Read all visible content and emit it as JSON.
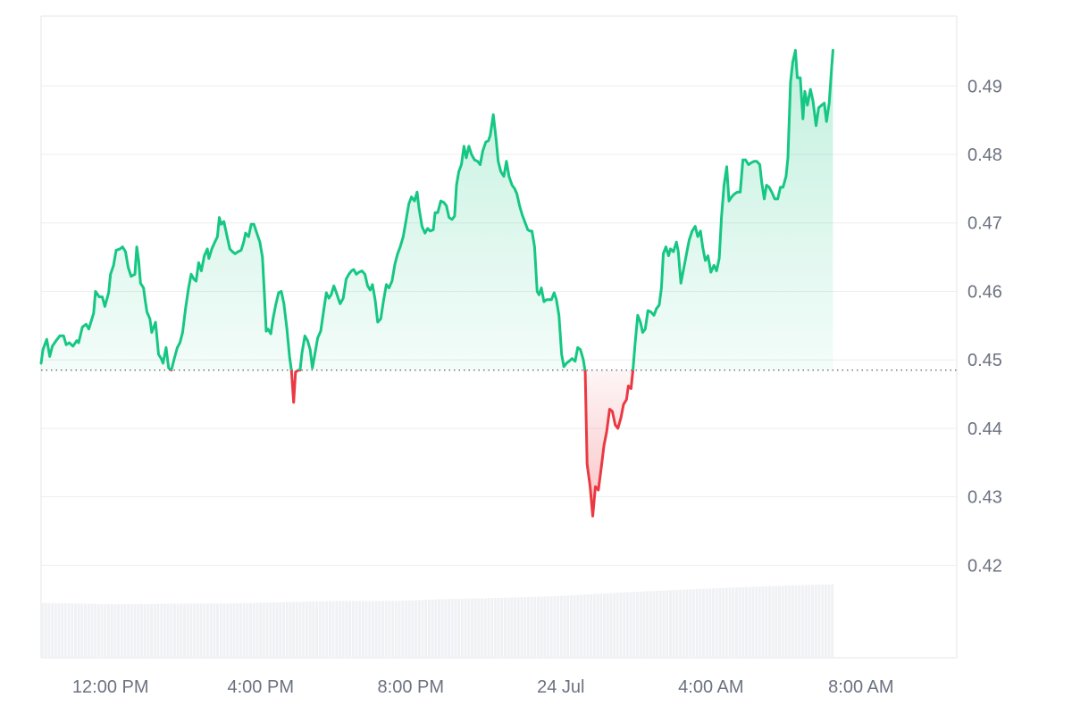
{
  "chart_data": {
    "type": "area",
    "x_unit": "hours from 10:00 AM, 23 Jul",
    "x_ticks": [
      {
        "x": 2,
        "label": "12:00 PM"
      },
      {
        "x": 6,
        "label": "4:00 PM"
      },
      {
        "x": 10,
        "label": "8:00 PM"
      },
      {
        "x": 14,
        "label": "24 Jul"
      },
      {
        "x": 18,
        "label": "4:00 AM"
      },
      {
        "x": 22,
        "label": "8:00 AM"
      }
    ],
    "y_ticks": [
      0.42,
      0.43,
      0.44,
      0.45,
      0.46,
      0.47,
      0.48,
      0.49
    ],
    "ylim": [
      0.4065,
      0.5002
    ],
    "xlim": [
      0.15,
      24.55
    ],
    "baseline": 0.4485,
    "colors": {
      "up_line": "#16c784",
      "down_line": "#ea3943",
      "up_fill": "#16c784",
      "down_fill": "#ea3943",
      "volume": "#eff1f4",
      "baseline": "#555b63"
    },
    "price": [
      [
        0.15,
        0.4495
      ],
      [
        0.2,
        0.4515
      ],
      [
        0.3,
        0.453
      ],
      [
        0.38,
        0.4505
      ],
      [
        0.45,
        0.452
      ],
      [
        0.55,
        0.4528
      ],
      [
        0.65,
        0.4535
      ],
      [
        0.75,
        0.4535
      ],
      [
        0.82,
        0.4522
      ],
      [
        0.9,
        0.4525
      ],
      [
        1.0,
        0.452
      ],
      [
        1.1,
        0.4528
      ],
      [
        1.15,
        0.4525
      ],
      [
        1.25,
        0.4548
      ],
      [
        1.35,
        0.4552
      ],
      [
        1.42,
        0.4545
      ],
      [
        1.55,
        0.4568
      ],
      [
        1.6,
        0.46
      ],
      [
        1.7,
        0.4592
      ],
      [
        1.78,
        0.4592
      ],
      [
        1.85,
        0.4578
      ],
      [
        1.95,
        0.4598
      ],
      [
        2.0,
        0.4625
      ],
      [
        2.08,
        0.4638
      ],
      [
        2.15,
        0.466
      ],
      [
        2.25,
        0.4662
      ],
      [
        2.32,
        0.4665
      ],
      [
        2.4,
        0.4658
      ],
      [
        2.47,
        0.4635
      ],
      [
        2.55,
        0.4622
      ],
      [
        2.65,
        0.4625
      ],
      [
        2.7,
        0.4665
      ],
      [
        2.75,
        0.4645
      ],
      [
        2.8,
        0.4612
      ],
      [
        2.88,
        0.4605
      ],
      [
        2.92,
        0.4588
      ],
      [
        2.97,
        0.457
      ],
      [
        3.05,
        0.456
      ],
      [
        3.1,
        0.454
      ],
      [
        3.2,
        0.4555
      ],
      [
        3.28,
        0.4508
      ],
      [
        3.35,
        0.4502
      ],
      [
        3.4,
        0.4495
      ],
      [
        3.48,
        0.4518
      ],
      [
        3.55,
        0.4488
      ],
      [
        3.62,
        0.4485
      ],
      [
        3.7,
        0.4502
      ],
      [
        3.78,
        0.4518
      ],
      [
        3.85,
        0.4525
      ],
      [
        3.92,
        0.454
      ],
      [
        4.0,
        0.4575
      ],
      [
        4.08,
        0.4605
      ],
      [
        4.15,
        0.4625
      ],
      [
        4.22,
        0.4618
      ],
      [
        4.28,
        0.4615
      ],
      [
        4.35,
        0.4642
      ],
      [
        4.42,
        0.463
      ],
      [
        4.5,
        0.4652
      ],
      [
        4.58,
        0.4662
      ],
      [
        4.62,
        0.4648
      ],
      [
        4.7,
        0.4662
      ],
      [
        4.78,
        0.4672
      ],
      [
        4.85,
        0.468
      ],
      [
        4.9,
        0.4708
      ],
      [
        4.95,
        0.4698
      ],
      [
        5.02,
        0.4702
      ],
      [
        5.1,
        0.4682
      ],
      [
        5.18,
        0.4662
      ],
      [
        5.25,
        0.4658
      ],
      [
        5.32,
        0.4655
      ],
      [
        5.4,
        0.4658
      ],
      [
        5.48,
        0.466
      ],
      [
        5.55,
        0.4672
      ],
      [
        5.6,
        0.4685
      ],
      [
        5.68,
        0.468
      ],
      [
        5.75,
        0.4698
      ],
      [
        5.82,
        0.4698
      ],
      [
        5.9,
        0.4685
      ],
      [
        5.98,
        0.4672
      ],
      [
        6.05,
        0.465
      ],
      [
        6.1,
        0.4598
      ],
      [
        6.15,
        0.4542
      ],
      [
        6.2,
        0.4545
      ],
      [
        6.27,
        0.4538
      ],
      [
        6.33,
        0.456
      ],
      [
        6.4,
        0.458
      ],
      [
        6.48,
        0.4598
      ],
      [
        6.55,
        0.46
      ],
      [
        6.62,
        0.4582
      ],
      [
        6.7,
        0.4545
      ],
      [
        6.77,
        0.4505
      ],
      [
        6.82,
        0.4485
      ],
      [
        6.88,
        0.4438
      ],
      [
        6.93,
        0.4482
      ],
      [
        7.0,
        0.4485
      ],
      [
        7.05,
        0.4485
      ],
      [
        7.1,
        0.451
      ],
      [
        7.18,
        0.4535
      ],
      [
        7.25,
        0.4528
      ],
      [
        7.32,
        0.4515
      ],
      [
        7.38,
        0.4488
      ],
      [
        7.45,
        0.451
      ],
      [
        7.52,
        0.4532
      ],
      [
        7.6,
        0.4542
      ],
      [
        7.68,
        0.4572
      ],
      [
        7.75,
        0.4598
      ],
      [
        7.82,
        0.459
      ],
      [
        7.88,
        0.4595
      ],
      [
        7.95,
        0.4608
      ],
      [
        8.02,
        0.4598
      ],
      [
        8.08,
        0.4588
      ],
      [
        8.12,
        0.4582
      ],
      [
        8.2,
        0.459
      ],
      [
        8.28,
        0.4618
      ],
      [
        8.35,
        0.4625
      ],
      [
        8.42,
        0.463
      ],
      [
        8.48,
        0.4632
      ],
      [
        8.55,
        0.4625
      ],
      [
        8.62,
        0.4628
      ],
      [
        8.7,
        0.463
      ],
      [
        8.78,
        0.4625
      ],
      [
        8.85,
        0.4608
      ],
      [
        8.92,
        0.4602
      ],
      [
        8.98,
        0.461
      ],
      [
        9.05,
        0.4588
      ],
      [
        9.12,
        0.4555
      ],
      [
        9.2,
        0.456
      ],
      [
        9.28,
        0.4588
      ],
      [
        9.35,
        0.461
      ],
      [
        9.42,
        0.4605
      ],
      [
        9.5,
        0.4615
      ],
      [
        9.58,
        0.464
      ],
      [
        9.65,
        0.4655
      ],
      [
        9.72,
        0.4665
      ],
      [
        9.8,
        0.468
      ],
      [
        9.88,
        0.4705
      ],
      [
        9.95,
        0.4728
      ],
      [
        10.02,
        0.4738
      ],
      [
        10.1,
        0.4732
      ],
      [
        10.17,
        0.4745
      ],
      [
        10.22,
        0.4722
      ],
      [
        10.3,
        0.4695
      ],
      [
        10.38,
        0.4685
      ],
      [
        10.45,
        0.4692
      ],
      [
        10.52,
        0.4688
      ],
      [
        10.6,
        0.469
      ],
      [
        10.65,
        0.4715
      ],
      [
        10.72,
        0.4715
      ],
      [
        10.8,
        0.4732
      ],
      [
        10.88,
        0.473
      ],
      [
        10.95,
        0.4725
      ],
      [
        11.02,
        0.4708
      ],
      [
        11.1,
        0.4705
      ],
      [
        11.17,
        0.471
      ],
      [
        11.22,
        0.4755
      ],
      [
        11.28,
        0.4775
      ],
      [
        11.35,
        0.4785
      ],
      [
        11.42,
        0.4812
      ],
      [
        11.48,
        0.4795
      ],
      [
        11.55,
        0.4812
      ],
      [
        11.62,
        0.48
      ],
      [
        11.7,
        0.4792
      ],
      [
        11.78,
        0.479
      ],
      [
        11.85,
        0.4785
      ],
      [
        11.92,
        0.4805
      ],
      [
        12.0,
        0.4818
      ],
      [
        12.07,
        0.482
      ],
      [
        12.12,
        0.4828
      ],
      [
        12.2,
        0.4858
      ],
      [
        12.27,
        0.4825
      ],
      [
        12.33,
        0.479
      ],
      [
        12.4,
        0.4775
      ],
      [
        12.48,
        0.4768
      ],
      [
        12.55,
        0.479
      ],
      [
        12.62,
        0.4768
      ],
      [
        12.7,
        0.4755
      ],
      [
        12.77,
        0.475
      ],
      [
        12.83,
        0.4742
      ],
      [
        12.9,
        0.4725
      ],
      [
        12.97,
        0.4712
      ],
      [
        13.05,
        0.47
      ],
      [
        13.12,
        0.469
      ],
      [
        13.18,
        0.4688
      ],
      [
        13.23,
        0.4688
      ],
      [
        13.3,
        0.4665
      ],
      [
        13.37,
        0.46
      ],
      [
        13.42,
        0.4595
      ],
      [
        13.48,
        0.4605
      ],
      [
        13.55,
        0.4585
      ],
      [
        13.62,
        0.4588
      ],
      [
        13.7,
        0.4588
      ],
      [
        13.75,
        0.4588
      ],
      [
        13.82,
        0.4598
      ],
      [
        13.88,
        0.4588
      ],
      [
        13.95,
        0.4565
      ],
      [
        14.02,
        0.4508
      ],
      [
        14.08,
        0.449
      ],
      [
        14.15,
        0.4495
      ],
      [
        14.22,
        0.4498
      ],
      [
        14.3,
        0.4502
      ],
      [
        14.38,
        0.4498
      ],
      [
        14.45,
        0.4518
      ],
      [
        14.52,
        0.4515
      ],
      [
        14.6,
        0.45
      ],
      [
        14.65,
        0.4482
      ],
      [
        14.7,
        0.4348
      ],
      [
        14.78,
        0.4315
      ],
      [
        14.85,
        0.4272
      ],
      [
        14.92,
        0.4315
      ],
      [
        15.0,
        0.431
      ],
      [
        15.07,
        0.434
      ],
      [
        15.15,
        0.4375
      ],
      [
        15.22,
        0.4395
      ],
      [
        15.3,
        0.4428
      ],
      [
        15.37,
        0.4425
      ],
      [
        15.45,
        0.4405
      ],
      [
        15.52,
        0.44
      ],
      [
        15.6,
        0.4415
      ],
      [
        15.67,
        0.4435
      ],
      [
        15.75,
        0.4442
      ],
      [
        15.8,
        0.4462
      ],
      [
        15.87,
        0.4458
      ],
      [
        15.92,
        0.4485
      ],
      [
        15.98,
        0.4525
      ],
      [
        16.05,
        0.4565
      ],
      [
        16.12,
        0.4555
      ],
      [
        16.18,
        0.454
      ],
      [
        16.25,
        0.4545
      ],
      [
        16.32,
        0.4572
      ],
      [
        16.4,
        0.457
      ],
      [
        16.48,
        0.4565
      ],
      [
        16.55,
        0.4575
      ],
      [
        16.62,
        0.458
      ],
      [
        16.68,
        0.4605
      ],
      [
        16.73,
        0.4655
      ],
      [
        16.8,
        0.4665
      ],
      [
        16.87,
        0.4652
      ],
      [
        16.92,
        0.4662
      ],
      [
        17.0,
        0.4658
      ],
      [
        17.08,
        0.4672
      ],
      [
        17.13,
        0.4658
      ],
      [
        17.2,
        0.4612
      ],
      [
        17.28,
        0.4635
      ],
      [
        17.35,
        0.4655
      ],
      [
        17.42,
        0.4675
      ],
      [
        17.5,
        0.4688
      ],
      [
        17.58,
        0.4695
      ],
      [
        17.65,
        0.468
      ],
      [
        17.72,
        0.4688
      ],
      [
        17.78,
        0.4665
      ],
      [
        17.85,
        0.4645
      ],
      [
        17.92,
        0.4652
      ],
      [
        18.0,
        0.4628
      ],
      [
        18.08,
        0.4638
      ],
      [
        18.15,
        0.463
      ],
      [
        18.22,
        0.4648
      ],
      [
        18.28,
        0.4708
      ],
      [
        18.35,
        0.4755
      ],
      [
        18.42,
        0.4782
      ],
      [
        18.48,
        0.4732
      ],
      [
        18.55,
        0.4738
      ],
      [
        18.62,
        0.4742
      ],
      [
        18.7,
        0.4745
      ],
      [
        18.78,
        0.4745
      ],
      [
        18.85,
        0.4792
      ],
      [
        18.92,
        0.4792
      ],
      [
        19.0,
        0.4785
      ],
      [
        19.08,
        0.4788
      ],
      [
        19.15,
        0.479
      ],
      [
        19.22,
        0.479
      ],
      [
        19.3,
        0.4785
      ],
      [
        19.35,
        0.476
      ],
      [
        19.42,
        0.4735
      ],
      [
        19.48,
        0.4755
      ],
      [
        19.55,
        0.4752
      ],
      [
        19.62,
        0.4745
      ],
      [
        19.7,
        0.4735
      ],
      [
        19.78,
        0.4735
      ],
      [
        19.85,
        0.4752
      ],
      [
        19.92,
        0.4752
      ],
      [
        20.0,
        0.4768
      ],
      [
        20.05,
        0.4795
      ],
      [
        20.12,
        0.4905
      ],
      [
        20.18,
        0.4935
      ],
      [
        20.25,
        0.4952
      ],
      [
        20.3,
        0.4912
      ],
      [
        20.38,
        0.4912
      ],
      [
        20.45,
        0.4852
      ],
      [
        20.5,
        0.4892
      ],
      [
        20.57,
        0.4872
      ],
      [
        20.65,
        0.4895
      ],
      [
        20.72,
        0.4878
      ],
      [
        20.8,
        0.4842
      ],
      [
        20.87,
        0.4868
      ],
      [
        20.95,
        0.4872
      ],
      [
        21.02,
        0.4875
      ],
      [
        21.08,
        0.4848
      ],
      [
        21.15,
        0.4875
      ],
      [
        21.2,
        0.4915
      ],
      [
        21.25,
        0.4952
      ]
    ],
    "volume": [
      [
        0.15,
        0.0855
      ],
      [
        2.1,
        0.0835
      ],
      [
        4.0,
        0.0845
      ],
      [
        5.0,
        0.0845
      ],
      [
        6.5,
        0.0865
      ],
      [
        8.0,
        0.0885
      ],
      [
        9.5,
        0.0885
      ],
      [
        11.0,
        0.0915
      ],
      [
        12.5,
        0.0935
      ],
      [
        14.0,
        0.0965
      ],
      [
        15.5,
        0.1015
      ],
      [
        17.0,
        0.1055
      ],
      [
        18.5,
        0.1095
      ],
      [
        20.0,
        0.1125
      ],
      [
        21.25,
        0.1145
      ]
    ]
  }
}
